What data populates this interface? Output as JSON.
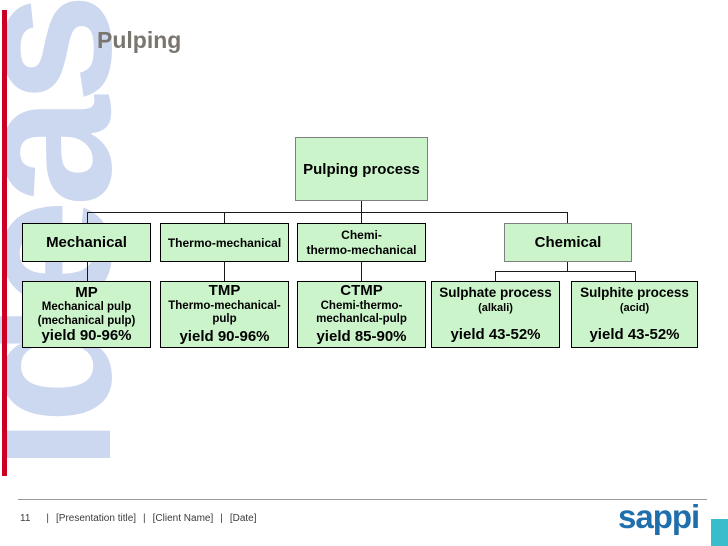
{
  "slide": {
    "title": "Pulping",
    "page_number": "11",
    "watermark_text": "ideas!",
    "logo_text": "sappi",
    "footer": {
      "separator": "|",
      "items": [
        "[Presentation title]",
        "[Client Name]",
        "[Date]"
      ]
    }
  },
  "colors": {
    "accent_red_bar": "#cc0022",
    "box_fill_green": "#ccf4cb",
    "box_border_gray": "#7f7f7f",
    "box_border_black": "#000000",
    "watermark_blue": "#ccd7f0",
    "title_gray": "#7a766f",
    "logo_blue": "#1f6fad",
    "teal_square": "#39bccc"
  },
  "diagram": {
    "root": {
      "label": "Pulping process"
    },
    "level2": [
      {
        "label": "Mechanical"
      },
      {
        "label": "Thermo-mechanical"
      },
      {
        "label_line1": "Chemi-",
        "label_line2": "thermo-mechanical"
      },
      {
        "label": "Chemical"
      }
    ],
    "level3": [
      {
        "title": "MP",
        "line1": "Mechanical pulp",
        "line2": "(mechanical pulp)",
        "yield": "yield 90-96%"
      },
      {
        "title": "TMP",
        "line1": "Thermo-mechanical-",
        "line2": "pulp",
        "yield": "yield 90-96%"
      },
      {
        "title": "CTMP",
        "line1": "Chemi-thermo-",
        "line2": "mechanIcal-pulp",
        "yield": "yield 85-90%"
      },
      {
        "title": "Sulphate process",
        "line1": "(alkali)",
        "line2": "",
        "yield": "yield 43-52%"
      },
      {
        "title": "Sulphite process",
        "line1": "(acid)",
        "line2": "",
        "yield": "yield 43-52%"
      }
    ]
  }
}
